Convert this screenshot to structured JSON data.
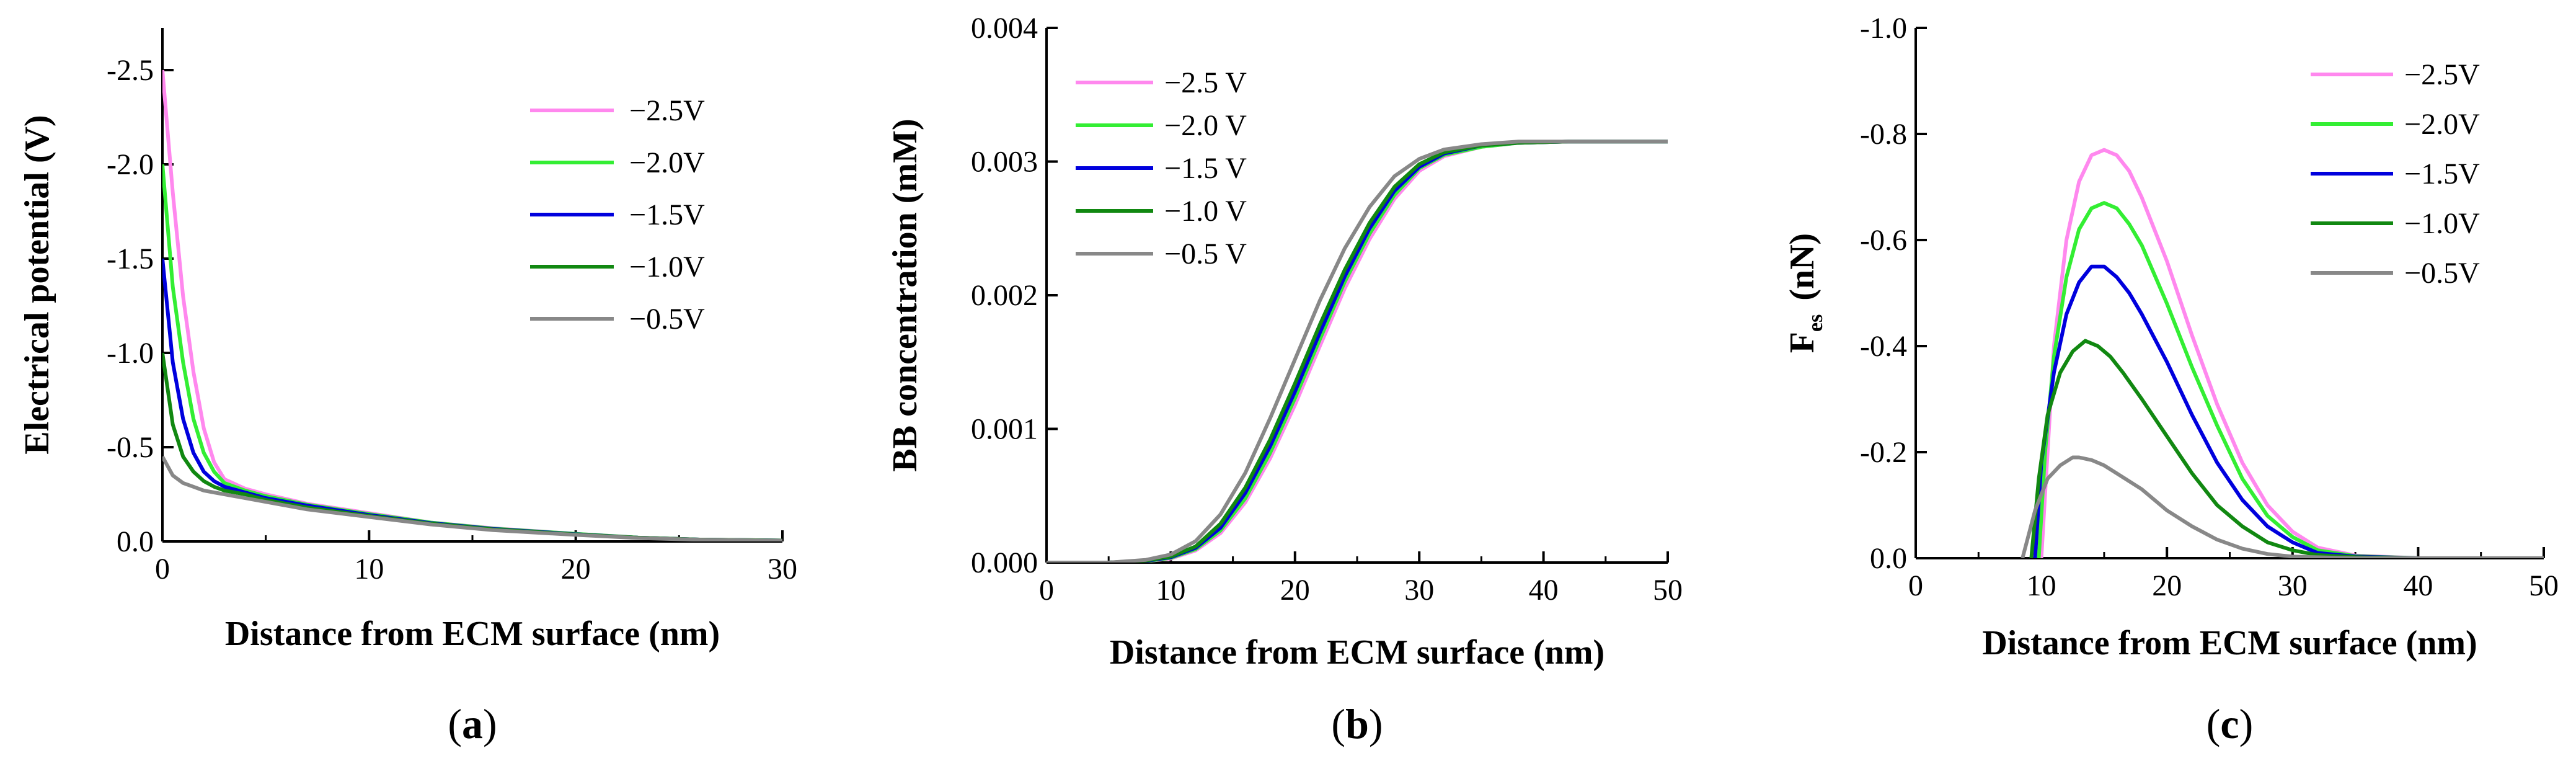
{
  "colors": {
    "-2.5": "#ff88ee",
    "-2.0": "#33ee33",
    "-1.5": "#0000dd",
    "-1.0": "#118811",
    "-0.5": "#888888"
  },
  "chart_data": [
    {
      "id": "a",
      "type": "line",
      "panel_label": {
        "open": "(",
        "letter": "a",
        "close": ")"
      },
      "xlabel": "Distance from ECM surface (nm)",
      "ylabel": "Electrical potential (V)",
      "xlim": [
        0,
        30
      ],
      "ylim": [
        0.0,
        -2.7
      ],
      "xticks": [
        "0",
        "10",
        "20",
        "30"
      ],
      "yticks": [
        "0.0",
        "-0.5",
        "-1.0",
        "-1.5",
        "-2.0",
        "-2.5"
      ],
      "legend_position": "top-right",
      "series": [
        {
          "name": "−2.5V",
          "key": "-2.5",
          "x": [
            0,
            0.5,
            1,
            1.5,
            2,
            2.5,
            3,
            4,
            5,
            7,
            10,
            13,
            16,
            20,
            23,
            26,
            30
          ],
          "y": [
            -2.5,
            -1.85,
            -1.3,
            -0.9,
            -0.6,
            -0.42,
            -0.33,
            -0.28,
            -0.25,
            -0.2,
            -0.15,
            -0.1,
            -0.07,
            -0.04,
            -0.02,
            -0.01,
            -0.005
          ]
        },
        {
          "name": "−2.0V",
          "key": "-2.0",
          "x": [
            0,
            0.5,
            1,
            1.5,
            2,
            2.5,
            3,
            4,
            5,
            7,
            10,
            13,
            16,
            20,
            23,
            26,
            30
          ],
          "y": [
            -2.0,
            -1.35,
            -0.95,
            -0.65,
            -0.47,
            -0.37,
            -0.31,
            -0.27,
            -0.24,
            -0.195,
            -0.145,
            -0.1,
            -0.068,
            -0.04,
            -0.02,
            -0.01,
            -0.005
          ]
        },
        {
          "name": "−1.5V",
          "key": "-1.5",
          "x": [
            0,
            0.5,
            1,
            1.5,
            2,
            2.5,
            3,
            4,
            5,
            7,
            10,
            13,
            16,
            20,
            23,
            26,
            30
          ],
          "y": [
            -1.5,
            -0.95,
            -0.65,
            -0.47,
            -0.37,
            -0.32,
            -0.29,
            -0.26,
            -0.23,
            -0.19,
            -0.14,
            -0.097,
            -0.066,
            -0.038,
            -0.02,
            -0.01,
            -0.005
          ]
        },
        {
          "name": "−1.0V",
          "key": "-1.0",
          "x": [
            0,
            0.5,
            1,
            1.5,
            2,
            2.5,
            3,
            4,
            5,
            7,
            10,
            13,
            16,
            20,
            23,
            26,
            30
          ],
          "y": [
            -1.0,
            -0.62,
            -0.45,
            -0.37,
            -0.32,
            -0.29,
            -0.27,
            -0.25,
            -0.22,
            -0.18,
            -0.135,
            -0.094,
            -0.064,
            -0.037,
            -0.02,
            -0.01,
            -0.005
          ]
        },
        {
          "name": "−0.5V",
          "key": "-0.5",
          "x": [
            0,
            0.5,
            1,
            1.5,
            2,
            2.5,
            3,
            4,
            5,
            7,
            10,
            13,
            16,
            20,
            23,
            26,
            30
          ],
          "y": [
            -0.45,
            -0.35,
            -0.31,
            -0.29,
            -0.27,
            -0.26,
            -0.25,
            -0.23,
            -0.21,
            -0.17,
            -0.13,
            -0.09,
            -0.06,
            -0.035,
            -0.018,
            -0.009,
            -0.004
          ]
        }
      ]
    },
    {
      "id": "b",
      "type": "line",
      "panel_label": {
        "open": "(",
        "letter": "b",
        "close": ")"
      },
      "xlabel": "Distance from ECM surface (nm)",
      "ylabel": "BB concentration (mM)",
      "xlim": [
        0,
        50
      ],
      "ylim": [
        0.0,
        0.004
      ],
      "xticks": [
        "0",
        "10",
        "20",
        "30",
        "40",
        "50"
      ],
      "yticks": [
        "0.000",
        "0.001",
        "0.002",
        "0.003",
        "0.004"
      ],
      "legend_position": "top-left",
      "series": [
        {
          "name": "−2.5 V",
          "key": "-2.5",
          "x": [
            0,
            5,
            8,
            10,
            12,
            14,
            16,
            18,
            20,
            22,
            24,
            26,
            28,
            30,
            32,
            35,
            38,
            42,
            50
          ],
          "y": [
            0,
            0,
            1e-05,
            3e-05,
            9e-05,
            0.00022,
            0.00045,
            0.00078,
            0.00118,
            0.00162,
            0.00205,
            0.00242,
            0.00272,
            0.00293,
            0.00304,
            0.00311,
            0.00314,
            0.00315,
            0.00315
          ]
        },
        {
          "name": "−2.0 V",
          "key": "-2.0",
          "x": [
            0,
            5,
            8,
            10,
            12,
            14,
            16,
            18,
            20,
            22,
            24,
            26,
            28,
            30,
            32,
            35,
            38,
            42,
            50
          ],
          "y": [
            0,
            0,
            1e-05,
            3.5e-05,
            0.0001,
            0.00024,
            0.00048,
            0.00082,
            0.00123,
            0.00167,
            0.0021,
            0.00246,
            0.00275,
            0.00295,
            0.00305,
            0.00311,
            0.00314,
            0.00315,
            0.00315
          ]
        },
        {
          "name": "−1.5 V",
          "key": "-1.5",
          "x": [
            0,
            5,
            8,
            10,
            12,
            14,
            16,
            18,
            20,
            22,
            24,
            26,
            28,
            30,
            32,
            35,
            38,
            42,
            50
          ],
          "y": [
            0,
            0,
            1.2e-05,
            4e-05,
            0.00011,
            0.00026,
            0.00052,
            0.00087,
            0.00128,
            0.00172,
            0.00214,
            0.0025,
            0.00278,
            0.00296,
            0.00306,
            0.00312,
            0.00314,
            0.00315,
            0.00315
          ]
        },
        {
          "name": "−1.0 V",
          "key": "-1.0",
          "x": [
            0,
            5,
            8,
            10,
            12,
            14,
            16,
            18,
            20,
            22,
            24,
            26,
            28,
            30,
            32,
            35,
            38,
            42,
            50
          ],
          "y": [
            0,
            0,
            1.5e-05,
            4.5e-05,
            0.00012,
            0.00029,
            0.00056,
            0.00092,
            0.00134,
            0.00178,
            0.00219,
            0.00254,
            0.00281,
            0.00298,
            0.00307,
            0.00312,
            0.00314,
            0.00315,
            0.00315
          ]
        },
        {
          "name": "−0.5 V",
          "key": "-0.5",
          "x": [
            0,
            5,
            8,
            10,
            12,
            14,
            16,
            18,
            20,
            22,
            24,
            26,
            28,
            30,
            32,
            35,
            38,
            42,
            50
          ],
          "y": [
            0,
            0,
            2e-05,
            6e-05,
            0.00016,
            0.00036,
            0.00067,
            0.00108,
            0.00152,
            0.00196,
            0.00235,
            0.00266,
            0.00289,
            0.00302,
            0.00309,
            0.00313,
            0.00315,
            0.00315,
            0.00315
          ]
        }
      ]
    },
    {
      "id": "c",
      "type": "line",
      "panel_label": {
        "open": "(",
        "letter": "c",
        "close": ")"
      },
      "xlabel": "Distance from ECM surface (nm)",
      "ylabel": {
        "main": "F",
        "sub": "es",
        "unit": "(nN)"
      },
      "xlim": [
        0,
        50
      ],
      "ylim": [
        0.0,
        -1.0
      ],
      "xticks": [
        "0",
        "10",
        "20",
        "30",
        "40",
        "50"
      ],
      "yticks": [
        "0.0",
        "-0.2",
        "-0.4",
        "-0.6",
        "-0.8",
        "-1.0"
      ],
      "legend_position": "top-right",
      "series": [
        {
          "name": "−2.5V",
          "key": "-2.5",
          "x": [
            10,
            10.5,
            11,
            12,
            13,
            14,
            15,
            16,
            17,
            18,
            20,
            22,
            24,
            26,
            28,
            30,
            32,
            35,
            40,
            50
          ],
          "y": [
            0,
            -0.2,
            -0.4,
            -0.6,
            -0.71,
            -0.76,
            -0.77,
            -0.76,
            -0.73,
            -0.68,
            -0.56,
            -0.42,
            -0.29,
            -0.18,
            -0.1,
            -0.05,
            -0.02,
            -0.005,
            0,
            0
          ]
        },
        {
          "name": "−2.0V",
          "key": "-2.0",
          "x": [
            9.8,
            10.3,
            11,
            12,
            13,
            14,
            15,
            16,
            17,
            18,
            20,
            22,
            24,
            26,
            28,
            30,
            32,
            35,
            40,
            50
          ],
          "y": [
            0,
            -0.2,
            -0.38,
            -0.53,
            -0.62,
            -0.66,
            -0.67,
            -0.66,
            -0.63,
            -0.59,
            -0.48,
            -0.36,
            -0.25,
            -0.15,
            -0.08,
            -0.04,
            -0.015,
            -0.004,
            0,
            0
          ]
        },
        {
          "name": "−1.5V",
          "key": "-1.5",
          "x": [
            9.5,
            10,
            11,
            12,
            13,
            14,
            15,
            16,
            17,
            18,
            20,
            22,
            24,
            26,
            28,
            30,
            32,
            35,
            40,
            50
          ],
          "y": [
            0,
            -0.18,
            -0.35,
            -0.46,
            -0.52,
            -0.55,
            -0.55,
            -0.53,
            -0.5,
            -0.46,
            -0.37,
            -0.27,
            -0.18,
            -0.11,
            -0.06,
            -0.03,
            -0.01,
            -0.003,
            0,
            0
          ]
        },
        {
          "name": "−1.0V",
          "key": "-1.0",
          "x": [
            9.2,
            9.8,
            10.5,
            11.5,
            12.5,
            13.5,
            14.5,
            15.5,
            16.5,
            18,
            20,
            22,
            24,
            26,
            28,
            30,
            32,
            35,
            40,
            50
          ],
          "y": [
            0,
            -0.15,
            -0.27,
            -0.35,
            -0.39,
            -0.41,
            -0.4,
            -0.38,
            -0.35,
            -0.3,
            -0.23,
            -0.16,
            -0.1,
            -0.06,
            -0.03,
            -0.015,
            -0.006,
            -0.002,
            0,
            0
          ]
        },
        {
          "name": "−0.5V",
          "key": "-0.5",
          "x": [
            8.5,
            9.5,
            10.5,
            11.5,
            12.5,
            13,
            14,
            15,
            16,
            18,
            20,
            22,
            24,
            26,
            28,
            30,
            35,
            40,
            50
          ],
          "y": [
            0,
            -0.09,
            -0.15,
            -0.175,
            -0.19,
            -0.19,
            -0.185,
            -0.175,
            -0.16,
            -0.13,
            -0.09,
            -0.06,
            -0.035,
            -0.018,
            -0.008,
            -0.003,
            0,
            0,
            0
          ]
        }
      ]
    }
  ]
}
